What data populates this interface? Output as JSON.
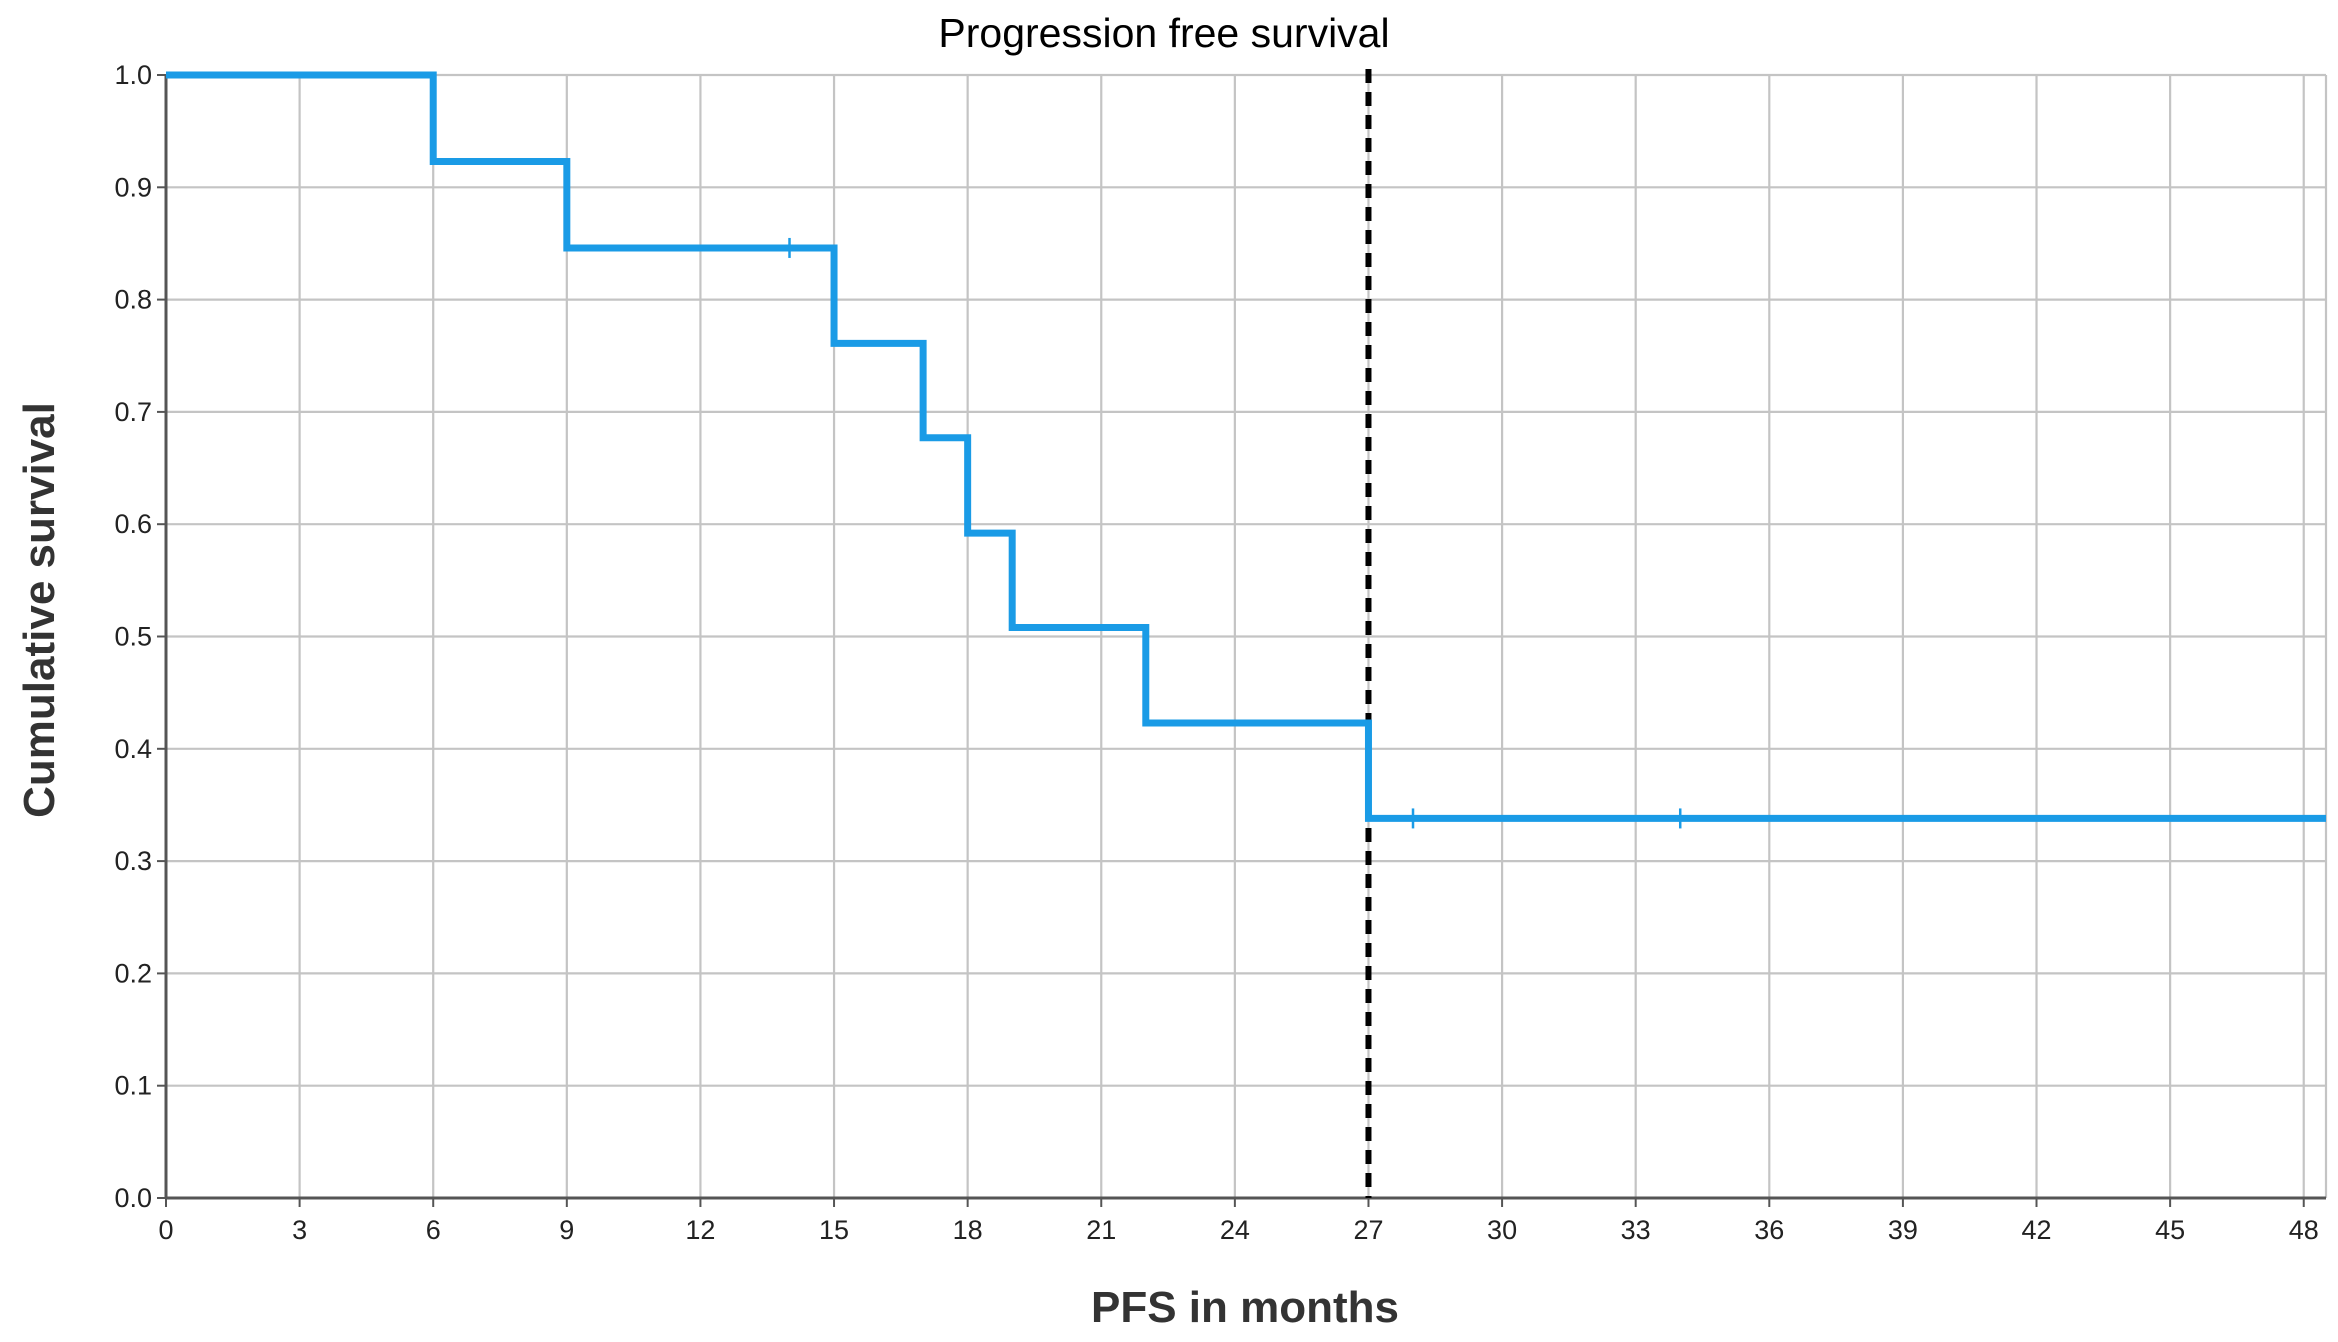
{
  "chart_data": {
    "type": "line",
    "title": "Progression free survival",
    "xlabel": "PFS in months",
    "ylabel": "Cumulative survival",
    "xlim": [
      0,
      48.5
    ],
    "ylim": [
      0,
      1.0
    ],
    "x_ticks": [
      0,
      3,
      6,
      9,
      12,
      15,
      18,
      21,
      24,
      27,
      30,
      33,
      36,
      39,
      42,
      45,
      48
    ],
    "y_ticks": [
      0.0,
      0.1,
      0.2,
      0.3,
      0.4,
      0.5,
      0.6,
      0.7,
      0.8,
      0.9,
      1.0
    ],
    "grid": true,
    "series": [
      {
        "step": "post",
        "color": "#1a9be6",
        "points": [
          [
            0,
            1.0
          ],
          [
            6,
            0.923
          ],
          [
            9,
            0.846
          ],
          [
            15,
            0.761
          ],
          [
            17,
            0.677
          ],
          [
            18,
            0.592
          ],
          [
            19,
            0.508
          ],
          [
            22,
            0.423
          ],
          [
            27,
            0.338
          ],
          [
            48.5,
            0.338
          ]
        ],
        "censored": [
          [
            14,
            0.846
          ],
          [
            28,
            0.338
          ],
          [
            34,
            0.338
          ]
        ]
      }
    ],
    "reference_line": {
      "x": 27,
      "style": "dashed",
      "color": "#000000"
    }
  }
}
